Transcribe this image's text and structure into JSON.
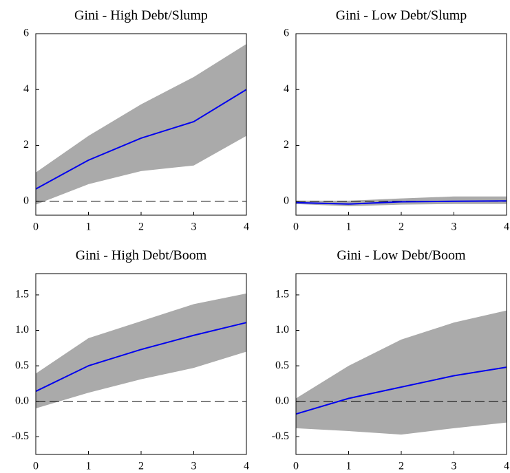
{
  "chart_data": [
    {
      "type": "line",
      "title": "Gini - High Debt/Slump",
      "x": [
        0,
        1,
        2,
        3,
        4
      ],
      "xlim": [
        0,
        4
      ],
      "xticks": [
        0,
        1,
        2,
        3,
        4
      ],
      "ylim": [
        -0.5,
        6
      ],
      "yticks": [
        0,
        2,
        4,
        6
      ],
      "reference_line": 0,
      "band": {
        "color": "#aaaaaa",
        "lower": [
          -0.12,
          0.61,
          1.08,
          1.28,
          2.34
        ],
        "upper": [
          1.03,
          2.34,
          3.47,
          4.45,
          5.63
        ]
      },
      "series": [
        {
          "color": "#0000ee",
          "values": [
            0.44,
            1.47,
            2.26,
            2.85,
            4.0
          ]
        }
      ]
    },
    {
      "type": "line",
      "title": "Gini - Low Debt/Slump",
      "x": [
        0,
        1,
        2,
        3,
        4
      ],
      "xlim": [
        0,
        4
      ],
      "xticks": [
        0,
        1,
        2,
        3,
        4
      ],
      "ylim": [
        -0.5,
        6
      ],
      "yticks": [
        0,
        2,
        4,
        6
      ],
      "reference_line": 0,
      "band": {
        "color": "#aaaaaa",
        "lower": [
          -0.1,
          -0.18,
          -0.12,
          -0.1,
          -0.1
        ],
        "upper": [
          0.02,
          0.02,
          0.1,
          0.17,
          0.17
        ]
      },
      "series": [
        {
          "color": "#0000ee",
          "values": [
            -0.05,
            -0.1,
            -0.02,
            0.0,
            0.01
          ]
        }
      ]
    },
    {
      "type": "line",
      "title": "Gini - High Debt/Boom",
      "x": [
        0,
        1,
        2,
        3,
        4
      ],
      "xlim": [
        0,
        4
      ],
      "xticks": [
        0,
        1,
        2,
        3,
        4
      ],
      "ylim": [
        -0.75,
        1.8
      ],
      "yticks": [
        -0.5,
        {
          "value": 0,
          "label": "0.0"
        },
        0.5,
        {
          "value": 1,
          "label": "1.0"
        },
        1.5
      ],
      "reference_line": 0,
      "band": {
        "color": "#aaaaaa",
        "lower": [
          -0.1,
          0.12,
          0.31,
          0.47,
          0.7
        ],
        "upper": [
          0.39,
          0.89,
          1.13,
          1.37,
          1.52
        ]
      },
      "series": [
        {
          "color": "#0000ee",
          "values": [
            0.14,
            0.5,
            0.73,
            0.93,
            1.11
          ]
        }
      ]
    },
    {
      "type": "line",
      "title": "Gini - Low Debt/Boom",
      "x": [
        0,
        1,
        2,
        3,
        4
      ],
      "xlim": [
        0,
        4
      ],
      "xticks": [
        0,
        1,
        2,
        3,
        4
      ],
      "ylim": [
        -0.75,
        1.8
      ],
      "yticks": [
        -0.5,
        {
          "value": 0,
          "label": "0.0"
        },
        0.5,
        {
          "value": 1,
          "label": "1.0"
        },
        1.5
      ],
      "reference_line": 0,
      "band": {
        "color": "#aaaaaa",
        "lower": [
          -0.38,
          -0.42,
          -0.47,
          -0.38,
          -0.3
        ],
        "upper": [
          0.04,
          0.5,
          0.87,
          1.11,
          1.28
        ]
      },
      "series": [
        {
          "color": "#0000ee",
          "values": [
            -0.18,
            0.04,
            0.2,
            0.36,
            0.48
          ]
        }
      ]
    }
  ]
}
